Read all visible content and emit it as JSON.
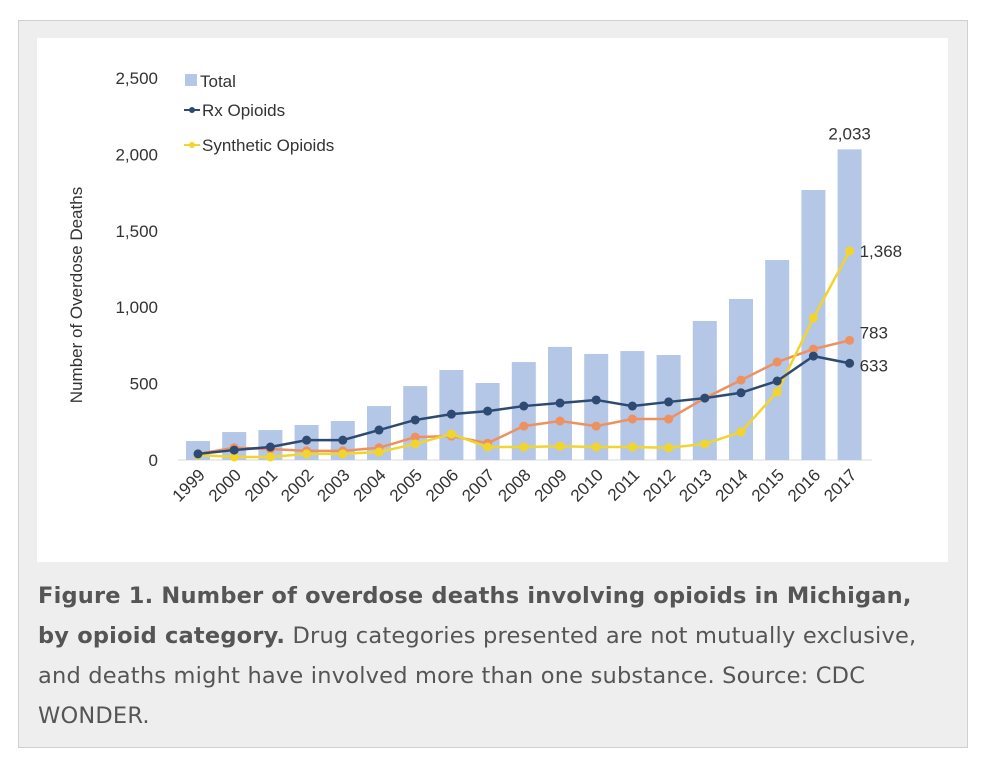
{
  "chart_data": {
    "type": "bar+line",
    "ylabel": "Number of Overdose Deaths",
    "xlabel": "",
    "ylim": [
      0,
      2500
    ],
    "yticks": [
      0,
      500,
      1000,
      1500,
      2000,
      2500
    ],
    "ytick_labels": [
      "0",
      "500",
      "1,000",
      "1,500",
      "2,000",
      "2,500"
    ],
    "grid": false,
    "legend_position": "top-left",
    "categories": [
      "1999",
      "2000",
      "2001",
      "2002",
      "2003",
      "2004",
      "2005",
      "2006",
      "2007",
      "2008",
      "2009",
      "2010",
      "2011",
      "2012",
      "2013",
      "2014",
      "2015",
      "2016",
      "2017"
    ],
    "series": [
      {
        "name": "Total",
        "kind": "bar",
        "color": "#b4c7e7",
        "values": [
          124,
          183,
          196,
          229,
          255,
          353,
          484,
          589,
          504,
          641,
          740,
          694,
          713,
          687,
          910,
          1054,
          1309,
          1767,
          2033
        ],
        "end_label": "2,033"
      },
      {
        "name": "Rx Opioids",
        "kind": "line",
        "color": "#2f4a72",
        "values": [
          40,
          65,
          85,
          130,
          130,
          196,
          262,
          300,
          320,
          353,
          373,
          393,
          353,
          380,
          405,
          440,
          517,
          680,
          633
        ],
        "end_label": "633"
      },
      {
        "name": "Synthetic Opioids",
        "kind": "line",
        "color": "#f2d52c",
        "values": [
          33,
          20,
          20,
          40,
          40,
          52,
          105,
          170,
          85,
          85,
          90,
          85,
          85,
          80,
          105,
          183,
          445,
          929,
          1368
        ],
        "end_label": "1,368"
      },
      {
        "name": "",
        "kind": "line",
        "color": "#ee9160",
        "in_legend": false,
        "values": [
          40,
          80,
          72,
          60,
          60,
          80,
          150,
          157,
          110,
          222,
          255,
          222,
          268,
          268,
          405,
          523,
          641,
          726,
          783
        ],
        "end_label": "783"
      }
    ]
  },
  "caption": {
    "title": "Figure 1. Number of overdose deaths involving opioids in Michigan, by opioid category.",
    "body": " Drug categories presented are not mutually exclusive, and deaths might have involved more than one substance. Source: CDC WONDER."
  }
}
